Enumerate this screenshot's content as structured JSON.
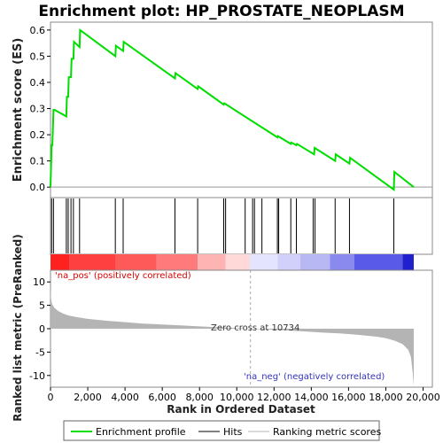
{
  "chart_data": {
    "type": "line",
    "title": "Enrichment plot: HP_PROSTATE_NEOPLASM",
    "es_panel": {
      "ylabel": "Enrichment score (ES)",
      "ylim": [
        -0.04,
        0.63
      ],
      "yticks": [
        0.0,
        0.1,
        0.2,
        0.3,
        0.4,
        0.5,
        0.6
      ],
      "ytick_labels": [
        "0.0",
        "0.1",
        "0.2",
        "0.3",
        "0.4",
        "0.5",
        "0.6"
      ],
      "series": [
        {
          "name": "Enrichment profile",
          "color": "#00dd00",
          "x": [
            0,
            60,
            100,
            160,
            220,
            850,
            880,
            950,
            980,
            1100,
            1130,
            1230,
            1260,
            1560,
            1590,
            3480,
            3510,
            3900,
            3930,
            6680,
            6710,
            7900,
            7930,
            9300,
            9330,
            12180,
            12210,
            12900,
            12930,
            13200,
            13230,
            14150,
            14180,
            15280,
            15310,
            16050,
            16080,
            18430,
            18460,
            19500
          ],
          "y": [
            0.0,
            0.16,
            0.16,
            0.295,
            0.295,
            0.27,
            0.345,
            0.345,
            0.42,
            0.42,
            0.49,
            0.49,
            0.555,
            0.535,
            0.6,
            0.5,
            0.54,
            0.52,
            0.555,
            0.415,
            0.435,
            0.375,
            0.385,
            0.315,
            0.32,
            0.19,
            0.195,
            0.165,
            0.17,
            0.16,
            0.165,
            0.125,
            0.15,
            0.1,
            0.125,
            0.09,
            0.112,
            -0.01,
            0.058,
            0.0
          ]
        }
      ]
    },
    "hits": {
      "name": "Hits",
      "x": [
        60,
        160,
        850,
        950,
        1100,
        1230,
        1560,
        3480,
        3900,
        6680,
        7900,
        9300,
        9400,
        10450,
        10850,
        10950,
        11350,
        12180,
        12250,
        12900,
        13200,
        14100,
        14200,
        15280,
        16050,
        18430
      ]
    },
    "ranked_metric": {
      "ylabel": "Ranked list metric (PreRanked)",
      "ylim": [
        -12.5,
        12.5
      ],
      "yticks": [
        -10,
        -5,
        0,
        5,
        10
      ],
      "ytick_labels": [
        "-10",
        "-5",
        "0",
        "5",
        "10"
      ],
      "series": [
        {
          "name": "Ranking metric scores",
          "color": "#b4b4b4",
          "x": [
            0,
            30,
            80,
            200,
            400,
            700,
            1000,
            1500,
            2000,
            3000,
            4000,
            5000,
            6000,
            7000,
            8000,
            9000,
            10000,
            10734,
            11500,
            12500,
            13500,
            14500,
            15500,
            16500,
            17500,
            18000,
            18500,
            18900,
            19200,
            19350,
            19450,
            19500
          ],
          "y": [
            9.5,
            6.5,
            5.3,
            4.5,
            3.8,
            3.2,
            2.8,
            2.4,
            2.1,
            1.7,
            1.4,
            1.1,
            0.9,
            0.7,
            0.5,
            0.3,
            0.15,
            0.0,
            -0.15,
            -0.35,
            -0.55,
            -0.8,
            -1.0,
            -1.3,
            -1.7,
            -2.0,
            -2.6,
            -3.3,
            -4.5,
            -6.0,
            -9.5,
            -12.3
          ]
        }
      ],
      "zero_cross": 10734,
      "zero_cross_label": "Zero cross at 10734",
      "pos_label": "'na_pos' (positively correlated)",
      "neg_label": "'na_neg' (negatively correlated)",
      "pos_color": "#dd0000",
      "neg_color": "#3333bb"
    },
    "x_axis": {
      "label": "Rank in Ordered Dataset",
      "xlim": [
        0,
        20500
      ],
      "xticks": [
        0,
        2000,
        4000,
        6000,
        8000,
        10000,
        12000,
        14000,
        16000,
        18000,
        20000
      ],
      "xtick_labels": [
        "0",
        "2,000",
        "4,000",
        "6,000",
        "8,000",
        "10,000",
        "12,000",
        "14,000",
        "16,000",
        "18,000",
        "20,000"
      ]
    },
    "color_bar": {
      "segments": [
        {
          "x0": 0,
          "x1": 1000,
          "color": "#ff2020"
        },
        {
          "x0": 1000,
          "x1": 3500,
          "color": "#ff4040"
        },
        {
          "x0": 3500,
          "x1": 5700,
          "color": "#ff5a5a"
        },
        {
          "x0": 5700,
          "x1": 7900,
          "color": "#ff7a7a"
        },
        {
          "x0": 7900,
          "x1": 9400,
          "color": "#ffb4b4"
        },
        {
          "x0": 9400,
          "x1": 10700,
          "color": "#ffd8d8"
        },
        {
          "x0": 10700,
          "x1": 12200,
          "color": "#e4e4ff"
        },
        {
          "x0": 12200,
          "x1": 13400,
          "color": "#d0d0fa"
        },
        {
          "x0": 13400,
          "x1": 15000,
          "color": "#b8b8f5"
        },
        {
          "x0": 15000,
          "x1": 16300,
          "color": "#8a8aee"
        },
        {
          "x0": 16300,
          "x1": 18900,
          "color": "#5a5ae8"
        },
        {
          "x0": 18900,
          "x1": 19500,
          "color": "#2020cc"
        }
      ]
    },
    "legend": {
      "placement": "bottom",
      "items": [
        {
          "label": "Enrichment profile",
          "color": "#00dd00"
        },
        {
          "label": "Hits",
          "color": "#000000"
        },
        {
          "label": "Ranking metric scores",
          "color": "#b4b4b4"
        }
      ]
    }
  }
}
